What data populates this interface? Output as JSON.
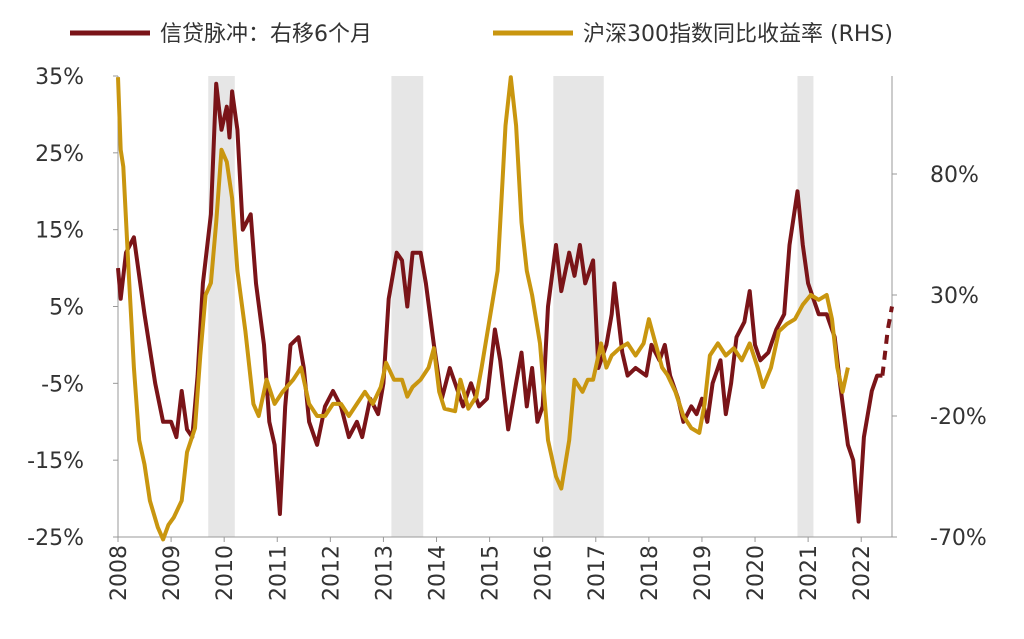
{
  "chart_data": {
    "type": "line",
    "legend_position": "top",
    "xlim": [
      2008,
      2022.58
    ],
    "xticks": [
      2008,
      2009,
      2010,
      2011,
      2012,
      2013,
      2014,
      2015,
      2016,
      2017,
      2018,
      2019,
      2020,
      2021,
      2022
    ],
    "ylim": [
      -25,
      35
    ],
    "yticks": [
      {
        "value": 35,
        "label": "35%"
      },
      {
        "value": 25,
        "label": "25%"
      },
      {
        "value": 15,
        "label": "15%"
      },
      {
        "value": 5,
        "label": "5%"
      },
      {
        "value": -5,
        "label": "-5%"
      },
      {
        "value": -15,
        "label": "-15%"
      },
      {
        "value": -25,
        "label": "-25%"
      }
    ],
    "y2lim": [
      -70,
      120.5
    ],
    "y2ticks": [
      {
        "value": 80,
        "label": "80%"
      },
      {
        "value": 30,
        "label": "30%"
      },
      {
        "value": -20,
        "label": "-20%"
      },
      {
        "value": -70,
        "label": "-70%"
      }
    ],
    "shaded_periods": [
      [
        2009.7,
        2010.2
      ],
      [
        2013.15,
        2013.75
      ],
      [
        2016.2,
        2017.15
      ],
      [
        2020.8,
        2021.1
      ]
    ],
    "shade_color": "#e6e6e6",
    "series": [
      {
        "name": "信贷脉冲：右移6个月",
        "color": "#7a1418",
        "x": [
          2008.0,
          2008.05,
          2008.15,
          2008.3,
          2008.5,
          2008.7,
          2008.85,
          2009.0,
          2009.1,
          2009.2,
          2009.3,
          2009.4,
          2009.5,
          2009.6,
          2009.75,
          2009.85,
          2009.95,
          2010.05,
          2010.1,
          2010.15,
          2010.25,
          2010.35,
          2010.5,
          2010.6,
          2010.75,
          2010.85,
          2010.95,
          2011.05,
          2011.15,
          2011.25,
          2011.4,
          2011.5,
          2011.6,
          2011.75,
          2011.9,
          2012.05,
          2012.2,
          2012.35,
          2012.5,
          2012.6,
          2012.75,
          2012.9,
          2013.0,
          2013.1,
          2013.25,
          2013.35,
          2013.45,
          2013.55,
          2013.7,
          2013.8,
          2013.95,
          2014.1,
          2014.25,
          2014.4,
          2014.5,
          2014.65,
          2014.8,
          2014.95,
          2015.1,
          2015.2,
          2015.35,
          2015.5,
          2015.6,
          2015.7,
          2015.8,
          2015.9,
          2016.0,
          2016.1,
          2016.25,
          2016.35,
          2016.5,
          2016.6,
          2016.7,
          2016.8,
          2016.95,
          2017.05,
          2017.2,
          2017.3,
          2017.35,
          2017.5,
          2017.6,
          2017.75,
          2017.95,
          2018.05,
          2018.2,
          2018.3,
          2018.4,
          2018.55,
          2018.65,
          2018.8,
          2018.9,
          2019.0,
          2019.1,
          2019.2,
          2019.35,
          2019.45,
          2019.55,
          2019.65,
          2019.8,
          2019.9,
          2020.0,
          2020.1,
          2020.25,
          2020.4,
          2020.55,
          2020.65,
          2020.8,
          2020.9,
          2021.0,
          2021.2,
          2021.35,
          2021.5,
          2021.6,
          2021.75,
          2021.85,
          2021.95,
          2022.05,
          2022.2,
          2022.3,
          2022.4
        ],
        "values": [
          10,
          6,
          12,
          14,
          4,
          -5,
          -10,
          -10,
          -12,
          -6,
          -11,
          -12,
          -4,
          8,
          17,
          34,
          28,
          31,
          27,
          33,
          28,
          15,
          17,
          8,
          0,
          -10,
          -13,
          -22,
          -8,
          0,
          1,
          -3,
          -10,
          -13,
          -8,
          -6,
          -8,
          -12,
          -10,
          -12,
          -7,
          -9,
          -5,
          6,
          12,
          11,
          5,
          12,
          12,
          8,
          0,
          -7,
          -3,
          -6,
          -8,
          -5,
          -8,
          -7,
          2,
          -2,
          -11,
          -5,
          -1,
          -8,
          -3,
          -10,
          -8,
          5,
          13,
          7,
          12,
          9,
          13,
          8,
          11,
          -3,
          0,
          4,
          8,
          -1,
          -4,
          -3,
          -4,
          0,
          -2,
          0,
          -4,
          -7,
          -10,
          -8,
          -9,
          -7,
          -10,
          -5,
          -2,
          -9,
          -5,
          1,
          3,
          7,
          0,
          -2,
          -1,
          2,
          4,
          13,
          20,
          13,
          8,
          4,
          4,
          1,
          -5,
          -13,
          -15,
          -23,
          -12,
          -6,
          -4,
          -4
        ],
        "forecast_x": [
          2022.4,
          2022.45,
          2022.5,
          2022.58
        ],
        "forecast_values": [
          -4,
          -1,
          2,
          5
        ]
      },
      {
        "name": "沪深300指数同比收益率 (RHS)",
        "color": "#c9960f",
        "axis": "y2",
        "x": [
          2008.0,
          2008.05,
          2008.1,
          2008.2,
          2008.3,
          2008.4,
          2008.5,
          2008.6,
          2008.75,
          2008.85,
          2008.95,
          2009.05,
          2009.2,
          2009.3,
          2009.45,
          2009.55,
          2009.65,
          2009.75,
          2009.85,
          2009.95,
          2010.05,
          2010.15,
          2010.25,
          2010.4,
          2010.55,
          2010.65,
          2010.8,
          2010.95,
          2011.1,
          2011.3,
          2011.45,
          2011.6,
          2011.75,
          2011.9,
          2012.05,
          2012.2,
          2012.35,
          2012.5,
          2012.65,
          2012.8,
          2012.95,
          2013.05,
          2013.2,
          2013.35,
          2013.45,
          2013.55,
          2013.7,
          2013.85,
          2013.95,
          2014.05,
          2014.15,
          2014.35,
          2014.45,
          2014.6,
          2014.75,
          2014.85,
          2015.0,
          2015.15,
          2015.25,
          2015.3,
          2015.4,
          2015.5,
          2015.6,
          2015.7,
          2015.8,
          2015.95,
          2016.1,
          2016.25,
          2016.35,
          2016.5,
          2016.6,
          2016.75,
          2016.85,
          2016.95,
          2017.1,
          2017.2,
          2017.3,
          2017.45,
          2017.6,
          2017.75,
          2017.9,
          2018.0,
          2018.1,
          2018.25,
          2018.35,
          2018.5,
          2018.65,
          2018.8,
          2018.95,
          2019.05,
          2019.15,
          2019.3,
          2019.45,
          2019.6,
          2019.75,
          2019.9,
          2020.05,
          2020.15,
          2020.3,
          2020.45,
          2020.6,
          2020.75,
          2020.9,
          2021.05,
          2021.2,
          2021.35,
          2021.45,
          2021.55,
          2021.65,
          2021.75
        ],
        "values": [
          120,
          90,
          83,
          40,
          0,
          -30,
          -40,
          -55,
          -66,
          -71,
          -65,
          -62,
          -55,
          -35,
          -25,
          5,
          30,
          35,
          60,
          90,
          85,
          70,
          40,
          15,
          -15,
          -20,
          -5,
          -15,
          -10,
          -5,
          0,
          -15,
          -20,
          -20,
          -15,
          -15,
          -20,
          -15,
          -10,
          -15,
          -8,
          2,
          -5,
          -5,
          -12,
          -8,
          -5,
          0,
          8,
          -10,
          -17,
          -18,
          -5,
          -17,
          -12,
          0,
          20,
          40,
          80,
          100,
          120,
          100,
          60,
          40,
          30,
          10,
          -30,
          -45,
          -50,
          -30,
          -5,
          -10,
          -5,
          -5,
          10,
          0,
          5,
          8,
          10,
          5,
          10,
          20,
          12,
          0,
          -3,
          -10,
          -20,
          -25,
          -27,
          -15,
          5,
          10,
          5,
          8,
          3,
          10,
          0,
          -8,
          0,
          15,
          18,
          20,
          26,
          30,
          28,
          30,
          20,
          0,
          -10,
          0
        ]
      }
    ]
  }
}
